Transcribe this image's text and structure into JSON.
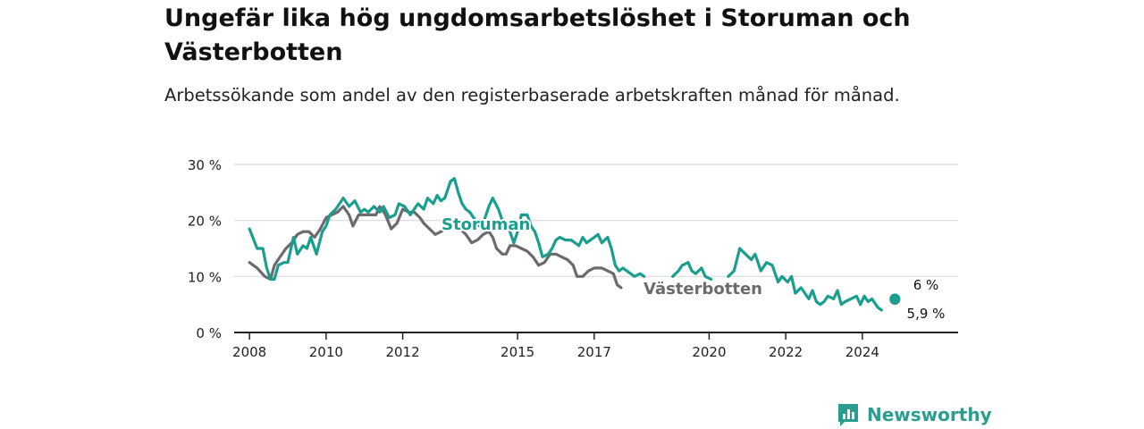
{
  "title": "Ungefär lika hög ungdomsarbetslöshet i Storuman och Västerbotten",
  "subtitle": "Arbetssökande som andel av den registerbaserade arbetskraften månad för månad.",
  "brand": {
    "name": "Newsworthy",
    "color": "#2a9d8f"
  },
  "chart_data": {
    "type": "line",
    "x_label": "",
    "y_label": "",
    "ylim": [
      0,
      30
    ],
    "xlim": [
      2007.6,
      2026.5
    ],
    "y_ticks": [
      0,
      10,
      20,
      30
    ],
    "y_tick_labels": [
      "0 %",
      "10 %",
      "20 %",
      "30 %"
    ],
    "x_ticks": [
      2008,
      2010,
      2012,
      2015,
      2017,
      2020,
      2022,
      2024
    ],
    "x_tick_labels": [
      "2008",
      "2010",
      "2012",
      "2015",
      "2017",
      "2020",
      "2022",
      "2024"
    ],
    "grid": true,
    "series": [
      {
        "name": "Storuman",
        "color": "#1a9e8e",
        "end_label": "6 %",
        "points": [
          [
            2008.0,
            18.5
          ],
          [
            2008.2,
            15
          ],
          [
            2008.35,
            15
          ],
          [
            2008.45,
            11.5
          ],
          [
            2008.55,
            9.5
          ],
          [
            2008.65,
            9.5
          ],
          [
            2008.75,
            12
          ],
          [
            2008.9,
            12.5
          ],
          [
            2009.0,
            12.5
          ],
          [
            2009.15,
            17
          ],
          [
            2009.25,
            14
          ],
          [
            2009.4,
            15.5
          ],
          [
            2009.5,
            15
          ],
          [
            2009.6,
            17
          ],
          [
            2009.75,
            14
          ],
          [
            2009.9,
            18
          ],
          [
            2010.0,
            19
          ],
          [
            2010.1,
            21
          ],
          [
            2010.25,
            22
          ],
          [
            2010.35,
            23
          ],
          [
            2010.45,
            24
          ],
          [
            2010.6,
            22.5
          ],
          [
            2010.75,
            23.5
          ],
          [
            2010.9,
            21.5
          ],
          [
            2011.0,
            22
          ],
          [
            2011.1,
            21.5
          ],
          [
            2011.25,
            22.5
          ],
          [
            2011.4,
            21.5
          ],
          [
            2011.5,
            22.5
          ],
          [
            2011.65,
            20.5
          ],
          [
            2011.8,
            21
          ],
          [
            2011.9,
            23
          ],
          [
            2012.05,
            22.5
          ],
          [
            2012.2,
            21
          ],
          [
            2012.3,
            22
          ],
          [
            2012.4,
            23
          ],
          [
            2012.55,
            22
          ],
          [
            2012.65,
            24
          ],
          [
            2012.8,
            23
          ],
          [
            2012.9,
            24.5
          ],
          [
            2013.0,
            23.5
          ],
          [
            2013.1,
            24
          ],
          [
            2013.25,
            27
          ],
          [
            2013.35,
            27.5
          ],
          [
            2013.45,
            25
          ],
          [
            2013.55,
            23
          ],
          [
            2013.65,
            22
          ],
          [
            2013.75,
            21.5
          ],
          [
            2013.9,
            20
          ],
          [
            2014.0,
            19
          ],
          [
            2014.1,
            19.5
          ],
          [
            2014.25,
            22.5
          ],
          [
            2014.35,
            24
          ],
          [
            2014.5,
            22
          ],
          [
            2014.6,
            20
          ],
          [
            2014.7,
            19
          ],
          [
            2014.8,
            18
          ],
          [
            2014.9,
            16
          ],
          [
            2015.0,
            18
          ],
          [
            2015.1,
            21
          ],
          [
            2015.25,
            21
          ],
          [
            2015.35,
            19
          ],
          [
            2015.45,
            18
          ],
          [
            2015.55,
            16
          ],
          [
            2015.65,
            13.5
          ],
          [
            2015.8,
            14
          ],
          [
            2015.9,
            15
          ],
          [
            2016.0,
            16.5
          ],
          [
            2016.1,
            17
          ],
          [
            2016.25,
            16.5
          ],
          [
            2016.4,
            16.5
          ],
          [
            2016.5,
            16
          ],
          [
            2016.6,
            15.5
          ],
          [
            2016.7,
            17
          ],
          [
            2016.8,
            16
          ],
          [
            2016.9,
            16.5
          ],
          [
            2017.0,
            17
          ],
          [
            2017.1,
            17.5
          ],
          [
            2017.2,
            16
          ],
          [
            2017.35,
            17
          ],
          [
            2017.45,
            15
          ],
          [
            2017.55,
            12
          ],
          [
            2017.65,
            11
          ],
          [
            2017.75,
            11.5
          ],
          [
            2017.85,
            11
          ],
          [
            2017.95,
            10.5
          ],
          [
            2018.05,
            10
          ],
          [
            2018.2,
            10.5
          ],
          [
            2018.3,
            10
          ],
          null,
          [
            2019.05,
            10
          ],
          [
            2019.2,
            11
          ],
          [
            2019.3,
            12
          ],
          [
            2019.45,
            12.5
          ],
          [
            2019.55,
            11
          ],
          [
            2019.65,
            10.5
          ],
          [
            2019.8,
            11.5
          ],
          [
            2019.9,
            10
          ],
          [
            2020.05,
            9.5
          ],
          null,
          [
            2020.5,
            10
          ],
          [
            2020.65,
            11
          ],
          [
            2020.8,
            15
          ],
          [
            2020.95,
            14
          ],
          [
            2021.1,
            13
          ],
          [
            2021.2,
            14
          ],
          [
            2021.35,
            11
          ],
          [
            2021.5,
            12.5
          ],
          [
            2021.65,
            12
          ],
          [
            2021.8,
            9
          ],
          [
            2021.9,
            10
          ],
          [
            2022.05,
            9
          ],
          [
            2022.15,
            10
          ],
          [
            2022.25,
            7
          ],
          [
            2022.4,
            8
          ],
          [
            2022.5,
            7
          ],
          [
            2022.6,
            6
          ],
          [
            2022.7,
            7.5
          ],
          [
            2022.8,
            5.5
          ],
          [
            2022.9,
            5
          ],
          [
            2023.0,
            5.5
          ],
          [
            2023.1,
            6.5
          ],
          [
            2023.25,
            6
          ],
          [
            2023.35,
            7.5
          ],
          [
            2023.45,
            5
          ],
          [
            2023.55,
            5.5
          ],
          [
            2023.7,
            6
          ],
          [
            2023.85,
            6.5
          ],
          [
            2023.95,
            5
          ],
          [
            2024.05,
            6.5
          ],
          [
            2024.15,
            5.5
          ],
          [
            2024.25,
            6
          ],
          [
            2024.4,
            4.5
          ],
          [
            2024.5,
            4
          ]
        ],
        "end_point": [
          2024.85,
          6
        ]
      },
      {
        "name": "Västerbotten",
        "color": "#6b6a6f",
        "end_label": "5,9 %",
        "points": [
          [
            2008.0,
            12.5
          ],
          [
            2008.2,
            11.5
          ],
          [
            2008.4,
            10
          ],
          [
            2008.55,
            9.5
          ],
          [
            2008.65,
            12
          ],
          [
            2008.8,
            13.5
          ],
          [
            2008.95,
            15
          ],
          [
            2009.1,
            16
          ],
          [
            2009.25,
            17.5
          ],
          [
            2009.4,
            18
          ],
          [
            2009.55,
            18
          ],
          [
            2009.7,
            17
          ],
          [
            2009.85,
            18.5
          ],
          [
            2010.0,
            20.5
          ],
          [
            2010.15,
            21
          ],
          [
            2010.3,
            21.5
          ],
          [
            2010.45,
            22.5
          ],
          [
            2010.6,
            21
          ],
          [
            2010.7,
            19
          ],
          [
            2010.85,
            21
          ],
          [
            2011.0,
            21
          ],
          [
            2011.15,
            21
          ],
          [
            2011.3,
            21
          ],
          [
            2011.4,
            22.5
          ],
          [
            2011.55,
            21
          ],
          [
            2011.7,
            18.5
          ],
          [
            2011.85,
            19.5
          ],
          [
            2012.0,
            22
          ],
          [
            2012.15,
            21.5
          ],
          [
            2012.3,
            21.5
          ],
          [
            2012.45,
            20.5
          ],
          [
            2012.55,
            19.5
          ],
          [
            2012.7,
            18.5
          ],
          [
            2012.85,
            17.5
          ],
          [
            2013.0,
            18
          ],
          [
            2013.2,
            19
          ],
          [
            2013.35,
            19.5
          ],
          [
            2013.5,
            18.5
          ],
          [
            2013.65,
            17.5
          ],
          [
            2013.8,
            16
          ],
          [
            2013.95,
            16.5
          ],
          [
            2014.1,
            17.5
          ],
          [
            2014.25,
            18
          ],
          [
            2014.35,
            17
          ],
          [
            2014.45,
            15
          ],
          [
            2014.6,
            14
          ],
          [
            2014.7,
            14
          ],
          [
            2014.8,
            15.5
          ],
          [
            2014.95,
            15.5
          ],
          [
            2015.1,
            15
          ],
          [
            2015.25,
            14.5
          ],
          [
            2015.4,
            13.5
          ],
          [
            2015.55,
            12
          ],
          [
            2015.7,
            12.5
          ],
          [
            2015.85,
            14
          ],
          [
            2016.0,
            14
          ],
          [
            2016.15,
            13.5
          ],
          [
            2016.3,
            13
          ],
          [
            2016.45,
            12
          ],
          [
            2016.55,
            10
          ],
          [
            2016.7,
            10
          ],
          [
            2016.85,
            11
          ],
          [
            2017.0,
            11.5
          ],
          [
            2017.2,
            11.5
          ],
          [
            2017.35,
            11
          ],
          [
            2017.5,
            10.5
          ],
          [
            2017.6,
            8.5
          ],
          [
            2017.7,
            8
          ]
        ],
        "end_point": [
          2024.85,
          5.9
        ]
      }
    ]
  }
}
